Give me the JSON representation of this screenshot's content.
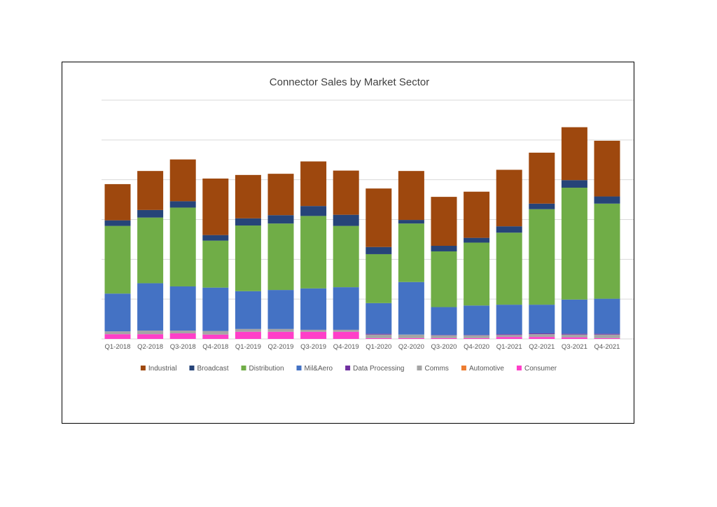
{
  "chart_data": {
    "type": "bar",
    "stacked": true,
    "title": "Connector Sales by Market Sector",
    "xlabel": "",
    "ylabel": "",
    "ylim": [
      0,
      6
    ],
    "grid": true,
    "y_tick_labels_shown": false,
    "legend_placement": "left",
    "categories": [
      "Q1-2018",
      "Q2-2018",
      "Q3-2018",
      "Q4-2018",
      "Q1-2019",
      "Q2-2019",
      "Q3-2019",
      "Q4-2019",
      "Q1-2020",
      "Q2-2020",
      "Q3-2020",
      "Q4-2020",
      "Q1-2021",
      "Q2-2021",
      "Q3-2021",
      "Q4-2021"
    ],
    "series": [
      {
        "name": "Consumer",
        "color": "#FF3FC8",
        "values": [
          0.12,
          0.12,
          0.14,
          0.11,
          0.18,
          0.18,
          0.18,
          0.18,
          0.02,
          0.02,
          0.02,
          0.02,
          0.05,
          0.05,
          0.04,
          0.02
        ]
      },
      {
        "name": "Automotive",
        "color": "#ED7D31",
        "values": [
          0,
          0,
          0,
          0,
          0,
          0,
          0,
          0,
          0,
          0,
          0,
          0,
          0,
          0,
          0,
          0
        ]
      },
      {
        "name": "Comms",
        "color": "#A5A5A5",
        "values": [
          0.07,
          0.09,
          0.07,
          0.09,
          0.07,
          0.07,
          0.05,
          0.05,
          0.09,
          0.09,
          0.07,
          0.07,
          0.05,
          0.07,
          0.07,
          0.09
        ]
      },
      {
        "name": "Data Processing",
        "color": "#7030A0",
        "values": [
          0,
          0,
          0,
          0,
          0,
          0,
          0,
          0,
          0.02,
          0,
          0.01,
          0.01,
          0.02,
          0.02,
          0.02,
          0.02
        ]
      },
      {
        "name": "Mil&Aero",
        "color": "#4472C4",
        "values": [
          0.95,
          1.19,
          1.11,
          1.09,
          0.95,
          0.98,
          1.04,
          1.07,
          0.77,
          1.32,
          0.7,
          0.74,
          0.74,
          0.72,
          0.86,
          0.88
        ]
      },
      {
        "name": "Distribution",
        "color": "#70AD47",
        "values": [
          1.7,
          1.65,
          1.98,
          1.18,
          1.65,
          1.67,
          1.82,
          1.54,
          1.23,
          1.47,
          1.4,
          1.58,
          1.81,
          2.4,
          2.81,
          2.39
        ]
      },
      {
        "name": "Broadcast",
        "color": "#264478",
        "values": [
          0.14,
          0.19,
          0.16,
          0.14,
          0.18,
          0.21,
          0.25,
          0.28,
          0.18,
          0.09,
          0.14,
          0.12,
          0.16,
          0.14,
          0.19,
          0.18
        ]
      },
      {
        "name": "Industrial",
        "color": "#9E480E",
        "values": [
          0.91,
          0.98,
          1.05,
          1.42,
          1.09,
          1.04,
          1.12,
          1.11,
          1.47,
          1.23,
          1.23,
          1.16,
          1.42,
          1.28,
          1.33,
          1.4
        ]
      }
    ]
  }
}
